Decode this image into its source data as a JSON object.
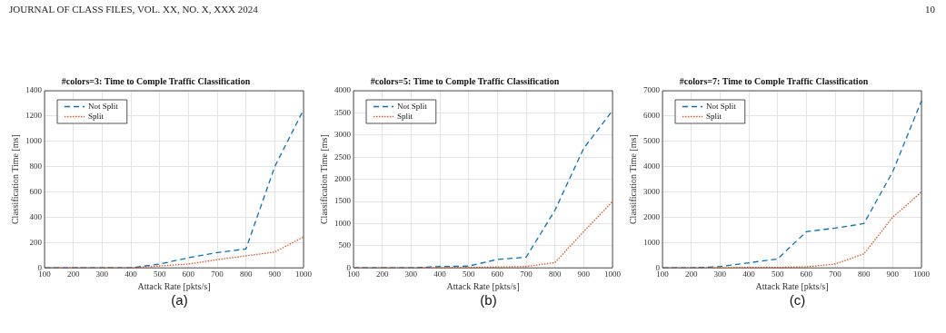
{
  "chart_data": [
    {
      "type": "line",
      "title": "#colors=3: Time to Comple Traffic Classification",
      "xlabel": "Attack Rate [pkts/s]",
      "ylabel": "Classification Time [ms]",
      "x": [
        100,
        200,
        300,
        400,
        500,
        600,
        700,
        800,
        900,
        1000
      ],
      "xlim": [
        100,
        1000
      ],
      "xticks": [
        100,
        200,
        300,
        400,
        500,
        600,
        700,
        800,
        900,
        1000
      ],
      "ylim": [
        0,
        1400
      ],
      "yticks": [
        0,
        200,
        400,
        600,
        800,
        1000,
        1200,
        1400
      ],
      "grid": true,
      "legend": "top left",
      "marker": "none",
      "series": [
        {
          "name": "Not Split",
          "color": "#0072bd",
          "line_style": "dashed",
          "values": [
            0,
            0,
            0,
            0,
            30,
            80,
            120,
            150,
            800,
            1250
          ]
        },
        {
          "name": "Split",
          "color": "#d95319",
          "line_style": "dotted",
          "values": [
            0,
            0,
            0,
            0,
            15,
            30,
            65,
            95,
            125,
            245
          ]
        }
      ],
      "annotations": [
        "JOURNAL OF CLASS FILES, VOL. XX, NO. X, XXX 2024",
        "(a)"
      ]
    },
    {
      "type": "line",
      "title": "#colors=5: Time to Comple Traffic Classification",
      "xlabel": "Attack Rate [pkts/s]",
      "ylabel": "Classification Time [ms]",
      "x": [
        100,
        200,
        300,
        400,
        500,
        600,
        700,
        800,
        900,
        1000
      ],
      "xlim": [
        100,
        1000
      ],
      "xticks": [
        100,
        200,
        300,
        400,
        500,
        600,
        700,
        800,
        900,
        1000
      ],
      "ylim": [
        0,
        4000
      ],
      "yticks": [
        0,
        500,
        1000,
        1500,
        2000,
        2500,
        3000,
        3500,
        4000
      ],
      "grid": true,
      "legend": "top left",
      "marker": "none",
      "series": [
        {
          "name": "Not Split",
          "color": "#0072bd",
          "line_style": "dashed",
          "values": [
            0,
            0,
            0,
            30,
            40,
            190,
            240,
            1300,
            2700,
            3550
          ]
        },
        {
          "name": "Split",
          "color": "#d95319",
          "line_style": "dotted",
          "values": [
            0,
            0,
            0,
            0,
            10,
            20,
            30,
            120,
            820,
            1500
          ]
        }
      ],
      "annotations": [
        "(b)"
      ]
    },
    {
      "type": "line",
      "title": "#colors=7: Time to Comple Traffic Classification",
      "xlabel": "Attack Rate [pkts/s]",
      "ylabel": "Classification Time [ms]",
      "x": [
        100,
        200,
        300,
        400,
        500,
        600,
        700,
        800,
        900,
        1000
      ],
      "xlim": [
        100,
        1000
      ],
      "xticks": [
        100,
        200,
        300,
        400,
        500,
        600,
        700,
        800,
        900,
        1000
      ],
      "ylim": [
        0,
        7000
      ],
      "yticks": [
        0,
        1000,
        2000,
        3000,
        4000,
        5000,
        6000,
        7000
      ],
      "grid": true,
      "legend": "top left",
      "marker": "none",
      "series": [
        {
          "name": "Not Split",
          "color": "#0072bd",
          "line_style": "dashed",
          "values": [
            0,
            0,
            50,
            200,
            350,
            1430,
            1570,
            1750,
            3800,
            6600
          ]
        },
        {
          "name": "Split",
          "color": "#d95319",
          "line_style": "dotted",
          "values": [
            0,
            0,
            0,
            20,
            20,
            40,
            150,
            550,
            2000,
            3000
          ]
        }
      ],
      "annotations": [
        "10",
        "(c)"
      ]
    }
  ]
}
